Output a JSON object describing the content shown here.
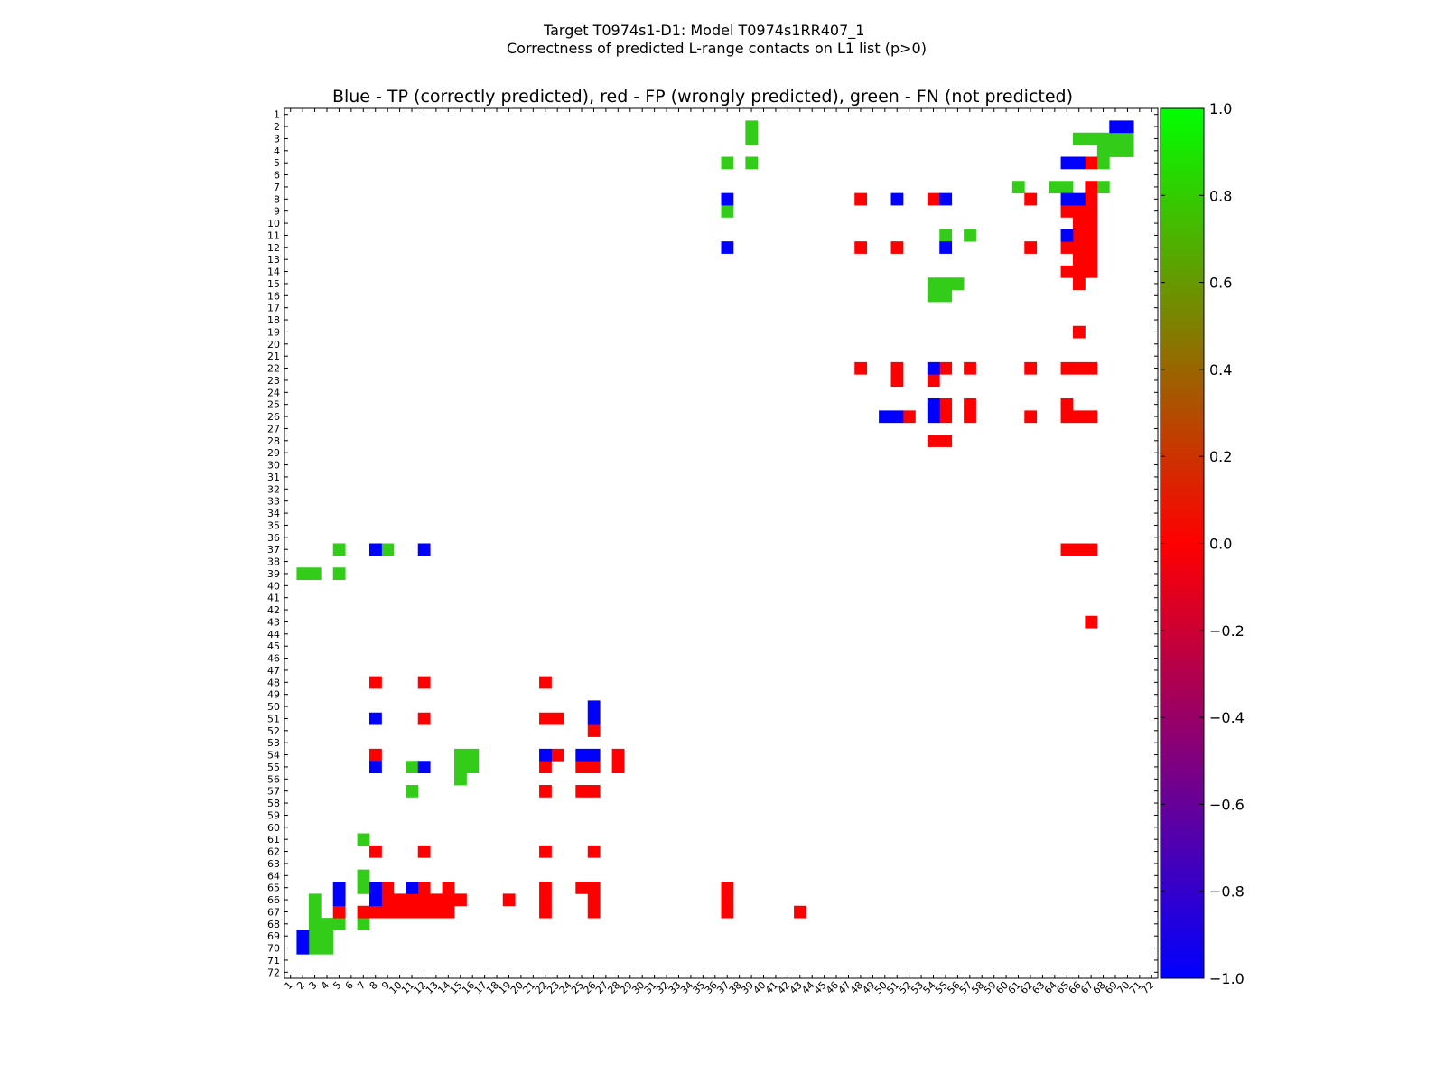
{
  "chart_data": {
    "type": "heatmap",
    "suptitle_line1": "Target T0974s1-D1: Model T0974s1RR407_1",
    "suptitle_line2": "Correctness of predicted L-range contacts on L1 list (p>0)",
    "title": "Blue - TP (correctly predicted), red - FP (wrongly predicted), green - FN (not predicted)",
    "n": 72,
    "grid": false,
    "legend": "colorbar-right",
    "colormap": "brg",
    "value_range": [
      -1.0,
      1.0
    ],
    "colorbar_ticks": [
      "1.0",
      "0.8",
      "0.6",
      "0.4",
      "0.2",
      "0.0",
      "−0.2",
      "−0.4",
      "−0.6",
      "−0.8",
      "−1.0"
    ],
    "colorbar_tick_values": [
      1.0,
      0.8,
      0.6,
      0.4,
      0.2,
      0.0,
      -0.2,
      -0.4,
      -0.6,
      -0.8,
      -1.0
    ],
    "categories": {
      "TP": {
        "value": -1,
        "color": "#0000ff"
      },
      "FP": {
        "value": 0,
        "color": "#ff0000"
      },
      "FN": {
        "value": 0.8,
        "color": "#33cc19"
      }
    },
    "cells": {
      "TP": [
        [
          2,
          69
        ],
        [
          2,
          70
        ],
        [
          5,
          65
        ],
        [
          5,
          66
        ],
        [
          8,
          37
        ],
        [
          8,
          51
        ],
        [
          8,
          55
        ],
        [
          8,
          65
        ],
        [
          8,
          66
        ],
        [
          11,
          65
        ],
        [
          12,
          37
        ],
        [
          12,
          55
        ],
        [
          22,
          54
        ],
        [
          25,
          54
        ],
        [
          26,
          50
        ],
        [
          26,
          51
        ],
        [
          26,
          54
        ],
        [
          37,
          8
        ],
        [
          37,
          12
        ],
        [
          50,
          26
        ],
        [
          51,
          26
        ],
        [
          51,
          8
        ],
        [
          54,
          22
        ],
        [
          54,
          25
        ],
        [
          54,
          26
        ],
        [
          55,
          8
        ],
        [
          55,
          12
        ],
        [
          65,
          5
        ],
        [
          65,
          8
        ],
        [
          65,
          11
        ],
        [
          66,
          5
        ],
        [
          66,
          8
        ],
        [
          69,
          2
        ],
        [
          70,
          2
        ]
      ],
      "FP": [
        [
          5,
          67
        ],
        [
          7,
          67
        ],
        [
          8,
          48
        ],
        [
          8,
          54
        ],
        [
          8,
          62
        ],
        [
          8,
          67
        ],
        [
          9,
          65
        ],
        [
          9,
          66
        ],
        [
          9,
          67
        ],
        [
          10,
          66
        ],
        [
          10,
          67
        ],
        [
          11,
          66
        ],
        [
          11,
          67
        ],
        [
          12,
          48
        ],
        [
          12,
          51
        ],
        [
          12,
          62
        ],
        [
          12,
          65
        ],
        [
          12,
          66
        ],
        [
          12,
          67
        ],
        [
          13,
          66
        ],
        [
          13,
          67
        ],
        [
          14,
          65
        ],
        [
          14,
          66
        ],
        [
          14,
          67
        ],
        [
          15,
          66
        ],
        [
          19,
          66
        ],
        [
          22,
          48
        ],
        [
          22,
          51
        ],
        [
          22,
          55
        ],
        [
          22,
          57
        ],
        [
          22,
          62
        ],
        [
          22,
          65
        ],
        [
          22,
          66
        ],
        [
          22,
          67
        ],
        [
          23,
          51
        ],
        [
          23,
          54
        ],
        [
          25,
          55
        ],
        [
          25,
          57
        ],
        [
          25,
          65
        ],
        [
          26,
          52
        ],
        [
          26,
          55
        ],
        [
          26,
          57
        ],
        [
          26,
          62
        ],
        [
          26,
          65
        ],
        [
          26,
          66
        ],
        [
          26,
          67
        ],
        [
          28,
          54
        ],
        [
          28,
          55
        ],
        [
          37,
          65
        ],
        [
          37,
          66
        ],
        [
          37,
          67
        ],
        [
          43,
          67
        ],
        [
          48,
          8
        ],
        [
          48,
          12
        ],
        [
          48,
          22
        ],
        [
          51,
          12
        ],
        [
          51,
          22
        ],
        [
          51,
          23
        ],
        [
          52,
          26
        ],
        [
          54,
          8
        ],
        [
          54,
          23
        ],
        [
          54,
          28
        ],
        [
          55,
          22
        ],
        [
          55,
          25
        ],
        [
          55,
          26
        ],
        [
          55,
          28
        ],
        [
          57,
          22
        ],
        [
          57,
          25
        ],
        [
          57,
          26
        ],
        [
          62,
          8
        ],
        [
          62,
          12
        ],
        [
          62,
          22
        ],
        [
          62,
          26
        ],
        [
          65,
          9
        ],
        [
          65,
          12
        ],
        [
          65,
          14
        ],
        [
          65,
          22
        ],
        [
          65,
          25
        ],
        [
          65,
          26
        ],
        [
          65,
          37
        ],
        [
          66,
          9
        ],
        [
          66,
          10
        ],
        [
          66,
          11
        ],
        [
          66,
          12
        ],
        [
          66,
          13
        ],
        [
          66,
          14
        ],
        [
          66,
          15
        ],
        [
          66,
          19
        ],
        [
          66,
          22
        ],
        [
          66,
          26
        ],
        [
          66,
          37
        ],
        [
          67,
          5
        ],
        [
          67,
          7
        ],
        [
          67,
          8
        ],
        [
          67,
          9
        ],
        [
          67,
          10
        ],
        [
          67,
          11
        ],
        [
          67,
          12
        ],
        [
          67,
          13
        ],
        [
          67,
          14
        ],
        [
          67,
          22
        ],
        [
          67,
          26
        ],
        [
          67,
          37
        ],
        [
          67,
          43
        ]
      ],
      "FN": [
        [
          2,
          39
        ],
        [
          3,
          39
        ],
        [
          3,
          66
        ],
        [
          3,
          67
        ],
        [
          3,
          68
        ],
        [
          3,
          69
        ],
        [
          3,
          70
        ],
        [
          4,
          68
        ],
        [
          4,
          69
        ],
        [
          4,
          70
        ],
        [
          5,
          37
        ],
        [
          5,
          39
        ],
        [
          5,
          68
        ],
        [
          7,
          61
        ],
        [
          7,
          64
        ],
        [
          7,
          65
        ],
        [
          7,
          68
        ],
        [
          9,
          37
        ],
        [
          11,
          55
        ],
        [
          11,
          57
        ],
        [
          15,
          54
        ],
        [
          15,
          55
        ],
        [
          15,
          56
        ],
        [
          16,
          54
        ],
        [
          16,
          55
        ],
        [
          37,
          5
        ],
        [
          37,
          9
        ],
        [
          39,
          2
        ],
        [
          39,
          3
        ],
        [
          39,
          5
        ],
        [
          54,
          15
        ],
        [
          54,
          16
        ],
        [
          55,
          11
        ],
        [
          55,
          15
        ],
        [
          55,
          16
        ],
        [
          56,
          15
        ],
        [
          57,
          11
        ],
        [
          61,
          7
        ],
        [
          64,
          7
        ],
        [
          65,
          7
        ],
        [
          66,
          3
        ],
        [
          67,
          3
        ],
        [
          68,
          3
        ],
        [
          68,
          4
        ],
        [
          68,
          5
        ],
        [
          68,
          7
        ],
        [
          69,
          3
        ],
        [
          69,
          4
        ],
        [
          70,
          3
        ],
        [
          70,
          4
        ]
      ]
    }
  }
}
